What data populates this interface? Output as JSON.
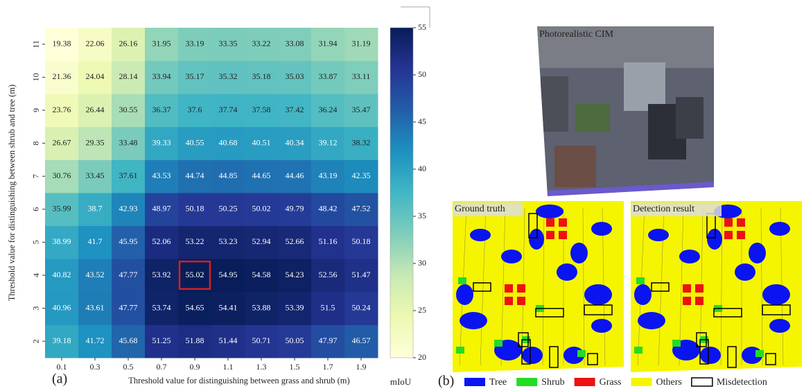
{
  "chart_data": {
    "type": "heatmap",
    "panel_label": "(a)",
    "x_label": "Threshold value for distinguishing between grass and shrub (m)",
    "y_label": "Threshold value for distinguishing between shrub and tree (m)",
    "x_categories": [
      "0.1",
      "0.3",
      "0.5",
      "0.7",
      "0.9",
      "1.1",
      "1.3",
      "1.5",
      "1.7",
      "1.9"
    ],
    "y_categories": [
      "2",
      "3",
      "4",
      "5",
      "6",
      "7",
      "8",
      "9",
      "10",
      "11"
    ],
    "z": [
      [
        39.18,
        41.72,
        45.68,
        51.25,
        51.88,
        51.44,
        50.71,
        50.05,
        47.97,
        46.57
      ],
      [
        40.96,
        43.61,
        47.77,
        53.74,
        54.65,
        54.41,
        53.88,
        53.39,
        51.5,
        50.24
      ],
      [
        40.82,
        43.52,
        47.77,
        53.92,
        55.02,
        54.95,
        54.58,
        54.23,
        52.56,
        51.47
      ],
      [
        38.99,
        41.7,
        45.95,
        52.06,
        53.22,
        53.23,
        52.94,
        52.66,
        51.16,
        50.18
      ],
      [
        35.99,
        38.7,
        42.93,
        48.97,
        50.18,
        50.25,
        50.02,
        49.79,
        48.42,
        47.52
      ],
      [
        30.76,
        33.45,
        37.61,
        43.53,
        44.74,
        44.85,
        44.65,
        44.46,
        43.19,
        42.35
      ],
      [
        26.67,
        29.35,
        33.48,
        39.33,
        40.55,
        40.68,
        40.51,
        40.34,
        39.12,
        38.32
      ],
      [
        23.76,
        26.44,
        30.55,
        36.37,
        37.6,
        37.74,
        37.58,
        37.42,
        36.24,
        35.47
      ],
      [
        21.36,
        24.04,
        28.14,
        33.94,
        35.17,
        35.32,
        35.18,
        35.03,
        33.87,
        33.11
      ],
      [
        19.38,
        22.06,
        26.16,
        31.95,
        33.19,
        33.35,
        33.22,
        33.08,
        31.94,
        31.19
      ]
    ],
    "colormap": "YlGnBu",
    "highlight": "max",
    "highlight_color": "#d62020",
    "colorbar_label": "mIoU",
    "zlim": [
      20,
      55
    ],
    "zticks": [
      20,
      25,
      30,
      35,
      40,
      45,
      50,
      55
    ]
  },
  "panel_b": {
    "label": "(b)",
    "images": [
      {
        "caption": "Photorealistic CIM"
      },
      {
        "caption": "Ground truth"
      },
      {
        "caption": "Detection result"
      }
    ],
    "legend": [
      {
        "name": "Tree",
        "color": "#0a14f0"
      },
      {
        "name": "Shrub",
        "color": "#22dd22"
      },
      {
        "name": "Grass",
        "color": "#ee1111"
      },
      {
        "name": "Others",
        "color": "#f5f500"
      },
      {
        "name": "Misdetection",
        "color": "#000000",
        "outline": true
      }
    ]
  }
}
